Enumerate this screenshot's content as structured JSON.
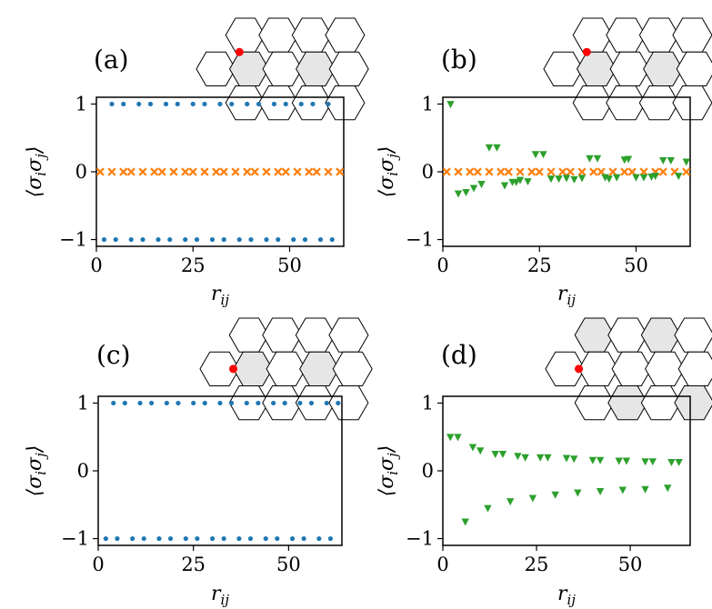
{
  "colors": {
    "blue": "#1f77b4",
    "orange": "#ff7f0e",
    "green": "#2ca02c",
    "red": "#ff0000",
    "shade": "#e6e6e6"
  },
  "chart_data": [
    {
      "panel_label": "(a)",
      "type": "scatter",
      "xlabel": "r_ij",
      "ylabel": "⟨σ_i σ_j⟩",
      "xlim": [
        0,
        64
      ],
      "ylim": [
        -1.1,
        1.1
      ],
      "xticks": [
        "0",
        "25",
        "50"
      ],
      "yticks": [
        "−1",
        "0",
        "1"
      ],
      "xtick_values": [
        0,
        25,
        50
      ],
      "ytick_values": [
        -1,
        0,
        1
      ],
      "highlighted_cells": [
        "r1c1",
        "r1c3"
      ],
      "site": "r1-top-left-of-c1",
      "series": [
        {
          "name": "plus",
          "marker": "dot",
          "color": "#1f77b4",
          "x": [
            4,
            7,
            11,
            14,
            18,
            21,
            25,
            28,
            32,
            35,
            39,
            42,
            46,
            49,
            53,
            56,
            60
          ],
          "y": [
            1,
            1,
            1,
            1,
            1,
            1,
            1,
            1,
            1,
            1,
            1,
            1,
            1,
            1,
            1,
            1,
            1
          ]
        },
        {
          "name": "minus",
          "marker": "dot",
          "color": "#1f77b4",
          "x": [
            2,
            5,
            9,
            12,
            16,
            19,
            23,
            26,
            30,
            33,
            37,
            40,
            44,
            47,
            51,
            54,
            58,
            61
          ],
          "y": [
            -1,
            -1,
            -1,
            -1,
            -1,
            -1,
            -1,
            -1,
            -1,
            -1,
            -1,
            -1,
            -1,
            -1,
            -1,
            -1,
            -1,
            -1
          ]
        },
        {
          "name": "zero",
          "marker": "x",
          "color": "#ff7f0e",
          "x": [
            1,
            4,
            7,
            9,
            12,
            15,
            17,
            20,
            23,
            25,
            28,
            31,
            33,
            36,
            39,
            41,
            44,
            47,
            49,
            52,
            55,
            57,
            60,
            63
          ],
          "y": [
            0,
            0,
            0,
            0,
            0,
            0,
            0,
            0,
            0,
            0,
            0,
            0,
            0,
            0,
            0,
            0,
            0,
            0,
            0,
            0,
            0,
            0,
            0,
            0
          ]
        }
      ]
    },
    {
      "panel_label": "(b)",
      "type": "scatter",
      "xlabel": "r_ij",
      "ylabel": "⟨σ_i σ_j⟩",
      "xlim": [
        0,
        64
      ],
      "ylim": [
        -1.1,
        1.1
      ],
      "xticks": [
        "0",
        "25",
        "50"
      ],
      "yticks": [
        "−1",
        "0",
        "1"
      ],
      "xtick_values": [
        0,
        25,
        50
      ],
      "ytick_values": [
        -1,
        0,
        1
      ],
      "highlighted_cells": [
        "r1c1",
        "r1c3"
      ],
      "site": "r1-top-left-of-c1",
      "series": [
        {
          "name": "zero",
          "marker": "x",
          "color": "#ff7f0e",
          "x": [
            1,
            4,
            7,
            9,
            12,
            15,
            17,
            20,
            23,
            25,
            28,
            31,
            33,
            36,
            39,
            41,
            44,
            47,
            49,
            52,
            55,
            57,
            60,
            63
          ],
          "y": [
            0,
            0,
            0,
            0,
            0,
            0,
            0,
            0,
            0,
            0,
            0,
            0,
            0,
            0,
            0,
            0,
            0,
            0,
            0,
            0,
            0,
            0,
            0,
            0
          ]
        },
        {
          "name": "correlation",
          "marker": "triangle-down",
          "color": "#2ca02c",
          "x": [
            2,
            4,
            6,
            8,
            10,
            12,
            14,
            16,
            18,
            19,
            20,
            22,
            24,
            26,
            28,
            30,
            32,
            34,
            36,
            38,
            40,
            42,
            43,
            45,
            47,
            48,
            50,
            52,
            54,
            55,
            57,
            59,
            61,
            63
          ],
          "y": [
            1.0,
            -0.32,
            -0.3,
            -0.24,
            -0.18,
            0.36,
            0.36,
            -0.2,
            -0.15,
            -0.15,
            -0.12,
            -0.14,
            0.26,
            0.26,
            -0.1,
            -0.1,
            -0.09,
            -0.11,
            -0.09,
            0.2,
            0.2,
            -0.08,
            -0.1,
            -0.08,
            0.18,
            0.19,
            -0.08,
            -0.08,
            -0.07,
            -0.06,
            0.17,
            0.17,
            -0.06,
            0.15
          ]
        }
      ]
    },
    {
      "panel_label": "(c)",
      "type": "scatter",
      "xlabel": "r_ij",
      "ylabel": "⟨σ_i σ_j⟩",
      "xlim": [
        0,
        64
      ],
      "ylim": [
        -1.1,
        1.1
      ],
      "xticks": [
        "0",
        "25",
        "50"
      ],
      "yticks": [
        "−1",
        "0",
        "1"
      ],
      "xtick_values": [
        0,
        25,
        50
      ],
      "ytick_values": [
        -1,
        0,
        1
      ],
      "highlighted_cells": [
        "r1c1",
        "r1c3"
      ],
      "site": "r1-center-of-c1",
      "series": [
        {
          "name": "plus",
          "marker": "dot",
          "color": "#1f77b4",
          "x": [
            4,
            7,
            11,
            14,
            18,
            21,
            25,
            28,
            32,
            35,
            39,
            42,
            46,
            49,
            53,
            56,
            60,
            63
          ],
          "y": [
            1,
            1,
            1,
            1,
            1,
            1,
            1,
            1,
            1,
            1,
            1,
            1,
            1,
            1,
            1,
            1,
            1,
            1
          ]
        },
        {
          "name": "minus",
          "marker": "dot",
          "color": "#1f77b4",
          "x": [
            2,
            5,
            9,
            12,
            16,
            19,
            23,
            26,
            30,
            33,
            37,
            40,
            44,
            47,
            51,
            54,
            58,
            61
          ],
          "y": [
            -1,
            -1,
            -1,
            -1,
            -1,
            -1,
            -1,
            -1,
            -1,
            -1,
            -1,
            -1,
            -1,
            -1,
            -1,
            -1,
            -1,
            -1
          ]
        }
      ]
    },
    {
      "panel_label": "(d)",
      "type": "scatter",
      "xlabel": "r_ij",
      "ylabel": "⟨σ_i σ_j⟩",
      "xlim": [
        0,
        66
      ],
      "ylim": [
        -1.1,
        1.1
      ],
      "xticks": [
        "0",
        "25",
        "50"
      ],
      "yticks": [
        "−1",
        "0",
        "1"
      ],
      "xtick_values": [
        0,
        25,
        50
      ],
      "ytick_values": [
        -1,
        0,
        1
      ],
      "highlighted_cells": [
        "r0c0",
        "r0c2",
        "r2c1",
        "r2c3"
      ],
      "site": "r1-center-of-c1",
      "series": [
        {
          "name": "positive",
          "marker": "triangle-down",
          "color": "#2ca02c",
          "x": [
            2,
            4,
            8,
            10,
            14,
            16,
            20,
            22,
            26,
            28,
            33,
            35,
            40,
            42,
            47,
            49,
            54,
            56,
            61,
            63
          ],
          "y": [
            0.5,
            0.5,
            0.35,
            0.3,
            0.25,
            0.25,
            0.22,
            0.2,
            0.2,
            0.2,
            0.19,
            0.18,
            0.16,
            0.16,
            0.15,
            0.15,
            0.14,
            0.14,
            0.13,
            0.13
          ]
        },
        {
          "name": "negative",
          "marker": "triangle-down",
          "color": "#2ca02c",
          "x": [
            6,
            12,
            18,
            24,
            30,
            36,
            42,
            48,
            54,
            60
          ],
          "y": [
            -0.75,
            -0.55,
            -0.45,
            -0.4,
            -0.35,
            -0.32,
            -0.3,
            -0.28,
            -0.27,
            -0.25
          ]
        }
      ]
    }
  ]
}
